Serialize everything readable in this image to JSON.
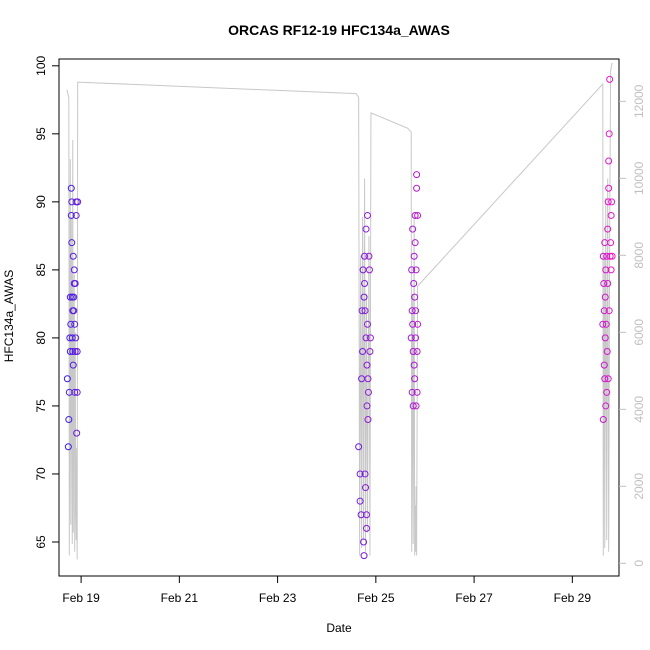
{
  "chart_data": {
    "type": "scatter",
    "title": "ORCAS RF12-19 HFC134a_AWAS",
    "xlabel": "Date",
    "ylabel": "HFC134a_AWAS",
    "xlim": [
      18.55,
      29.95
    ],
    "ylim": [
      62.5,
      100.5
    ],
    "y2lim": [
      -330,
      13100
    ],
    "x_ticks": [
      {
        "value": 19,
        "label": "Feb 19"
      },
      {
        "value": 21,
        "label": "Feb 21"
      },
      {
        "value": 23,
        "label": "Feb 23"
      },
      {
        "value": 25,
        "label": "Feb 25"
      },
      {
        "value": 27,
        "label": "Feb 27"
      },
      {
        "value": 29,
        "label": "Feb 29"
      }
    ],
    "y_ticks": [
      65,
      70,
      75,
      80,
      85,
      90,
      95,
      100
    ],
    "y2_ticks": [
      0,
      2000,
      4000,
      6000,
      8000,
      10000,
      12000
    ],
    "colors": {
      "series_start": "#3c1ee6",
      "series_end": "#f014c8",
      "altitude_line": "#c8c8c8",
      "right_axis": "#c0c0c0"
    },
    "series": [
      {
        "values": [
          [
            18.72,
            77
          ],
          [
            18.74,
            72
          ],
          [
            18.75,
            74
          ],
          [
            18.76,
            76
          ],
          [
            18.77,
            80
          ],
          [
            18.78,
            79
          ],
          [
            18.78,
            83
          ],
          [
            18.79,
            81
          ],
          [
            18.8,
            89
          ],
          [
            18.8,
            91
          ],
          [
            18.81,
            90
          ],
          [
            18.81,
            87
          ],
          [
            18.82,
            83
          ],
          [
            18.82,
            80
          ],
          [
            18.83,
            79
          ],
          [
            18.83,
            82
          ],
          [
            18.84,
            78
          ],
          [
            18.84,
            86
          ],
          [
            18.85,
            82
          ],
          [
            18.85,
            83
          ],
          [
            18.86,
            84
          ],
          [
            18.86,
            85
          ],
          [
            18.87,
            81
          ],
          [
            18.87,
            76
          ],
          [
            18.88,
            79
          ],
          [
            18.88,
            84
          ],
          [
            18.89,
            80
          ],
          [
            18.9,
            90
          ],
          [
            18.9,
            89
          ],
          [
            18.91,
            73
          ],
          [
            18.92,
            76
          ],
          [
            18.92,
            79
          ],
          [
            18.93,
            90
          ],
          [
            24.65,
            72
          ],
          [
            24.68,
            70
          ],
          [
            24.68,
            68
          ],
          [
            24.7,
            67
          ],
          [
            24.71,
            77
          ],
          [
            24.72,
            82
          ],
          [
            24.73,
            79
          ],
          [
            24.74,
            85
          ],
          [
            24.75,
            65
          ],
          [
            24.76,
            64
          ],
          [
            24.76,
            83
          ],
          [
            24.77,
            86
          ],
          [
            24.77,
            84
          ],
          [
            24.78,
            70
          ],
          [
            24.78,
            82
          ],
          [
            24.79,
            69
          ],
          [
            24.8,
            88
          ],
          [
            24.8,
            80
          ],
          [
            24.81,
            66
          ],
          [
            24.81,
            67
          ],
          [
            24.82,
            75
          ],
          [
            24.82,
            78
          ],
          [
            24.83,
            89
          ],
          [
            24.83,
            81
          ],
          [
            24.84,
            77
          ],
          [
            24.84,
            74
          ],
          [
            24.85,
            76
          ],
          [
            24.86,
            86
          ],
          [
            24.87,
            85
          ],
          [
            24.88,
            79
          ],
          [
            24.89,
            80
          ],
          [
            25.72,
            80
          ],
          [
            25.73,
            85
          ],
          [
            25.74,
            82
          ],
          [
            25.74,
            76
          ],
          [
            25.75,
            88
          ],
          [
            25.75,
            81
          ],
          [
            25.76,
            79
          ],
          [
            25.76,
            75
          ],
          [
            25.77,
            84
          ],
          [
            25.78,
            86
          ],
          [
            25.78,
            78
          ],
          [
            25.79,
            83
          ],
          [
            25.79,
            77
          ],
          [
            25.8,
            87
          ],
          [
            25.8,
            89
          ],
          [
            25.81,
            82
          ],
          [
            25.81,
            80
          ],
          [
            25.82,
            75
          ],
          [
            25.82,
            85
          ],
          [
            25.83,
            91
          ],
          [
            25.83,
            92
          ],
          [
            25.84,
            76
          ],
          [
            25.84,
            79
          ],
          [
            25.85,
            89
          ],
          [
            25.85,
            81
          ],
          [
            29.62,
            81
          ],
          [
            29.63,
            86
          ],
          [
            29.63,
            74
          ],
          [
            29.64,
            84
          ],
          [
            29.65,
            78
          ],
          [
            29.65,
            82
          ],
          [
            29.66,
            77
          ],
          [
            29.66,
            87
          ],
          [
            29.67,
            80
          ],
          [
            29.67,
            83
          ],
          [
            29.68,
            85
          ],
          [
            29.68,
            75
          ],
          [
            29.69,
            81
          ],
          [
            29.7,
            76
          ],
          [
            29.7,
            86
          ],
          [
            29.71,
            79
          ],
          [
            29.72,
            84
          ],
          [
            29.72,
            88
          ],
          [
            29.73,
            90
          ],
          [
            29.73,
            77
          ],
          [
            29.74,
            91
          ],
          [
            29.74,
            93
          ],
          [
            29.75,
            82
          ],
          [
            29.75,
            95
          ],
          [
            29.76,
            99
          ],
          [
            29.77,
            86
          ],
          [
            29.78,
            87
          ],
          [
            29.79,
            89
          ],
          [
            29.79,
            85
          ],
          [
            29.8,
            90
          ],
          [
            29.81,
            86
          ]
        ]
      },
      {
        "type": "line",
        "axis": "right",
        "values": [
          [
            18.71,
            12300
          ],
          [
            18.75,
            12100
          ],
          [
            18.76,
            200
          ],
          [
            18.78,
            10500
          ],
          [
            18.79,
            1000
          ],
          [
            18.8,
            9000
          ],
          [
            18.82,
            500
          ],
          [
            18.83,
            11000
          ],
          [
            18.84,
            800
          ],
          [
            18.86,
            7500
          ],
          [
            18.87,
            300
          ],
          [
            18.88,
            6000
          ],
          [
            18.89,
            1500
          ],
          [
            18.9,
            600
          ],
          [
            18.91,
            3000
          ],
          [
            18.92,
            100
          ],
          [
            18.93,
            12500
          ],
          [
            24.6,
            12200
          ],
          [
            24.65,
            12100
          ],
          [
            24.67,
            200
          ],
          [
            24.69,
            8000
          ],
          [
            24.71,
            400
          ],
          [
            24.73,
            9000
          ],
          [
            24.75,
            600
          ],
          [
            24.77,
            10000
          ],
          [
            24.79,
            300
          ],
          [
            24.81,
            7000
          ],
          [
            24.83,
            800
          ],
          [
            24.86,
            8500
          ],
          [
            24.88,
            200
          ],
          [
            24.9,
            11700
          ],
          [
            25.65,
            11300
          ],
          [
            25.72,
            11200
          ],
          [
            25.73,
            300
          ],
          [
            25.75,
            7000
          ],
          [
            25.76,
            500
          ],
          [
            25.78,
            9000
          ],
          [
            25.79,
            200
          ],
          [
            25.8,
            1500
          ],
          [
            25.81,
            300
          ],
          [
            25.82,
            2000
          ],
          [
            25.83,
            200
          ],
          [
            25.85,
            7200
          ],
          [
            29.62,
            12450
          ],
          [
            29.63,
            200
          ],
          [
            29.65,
            8000
          ],
          [
            29.66,
            400
          ],
          [
            29.68,
            9500
          ],
          [
            29.7,
            600
          ],
          [
            29.72,
            10000
          ],
          [
            29.74,
            300
          ],
          [
            29.76,
            8500
          ],
          [
            29.78,
            12800
          ],
          [
            29.81,
            13000
          ]
        ]
      }
    ]
  }
}
